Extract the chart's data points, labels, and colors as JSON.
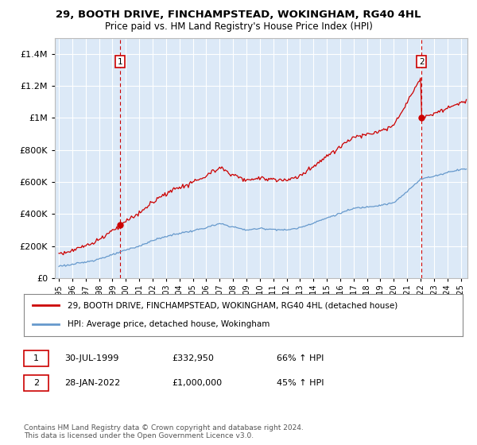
{
  "title1": "29, BOOTH DRIVE, FINCHAMPSTEAD, WOKINGHAM, RG40 4HL",
  "title2": "Price paid vs. HM Land Registry's House Price Index (HPI)",
  "background_color": "#dce9f7",
  "plot_bg_color": "#dce9f7",
  "ylim": [
    0,
    1500000
  ],
  "yticks": [
    0,
    200000,
    400000,
    600000,
    800000,
    1000000,
    1200000,
    1400000
  ],
  "sale1_year": 1999.58,
  "sale1_price": 332950,
  "sale2_year": 2022.08,
  "sale2_price": 1000000,
  "legend_line1": "29, BOOTH DRIVE, FINCHAMPSTEAD, WOKINGHAM, RG40 4HL (detached house)",
  "legend_line2": "HPI: Average price, detached house, Wokingham",
  "note1_date": "30-JUL-1999",
  "note1_price": "£332,950",
  "note1_hpi": "66% ↑ HPI",
  "note2_date": "28-JAN-2022",
  "note2_price": "£1,000,000",
  "note2_hpi": "45% ↑ HPI",
  "copyright": "Contains HM Land Registry data © Crown copyright and database right 2024.\nThis data is licensed under the Open Government Licence v3.0.",
  "red_color": "#cc0000",
  "blue_color": "#6699cc"
}
